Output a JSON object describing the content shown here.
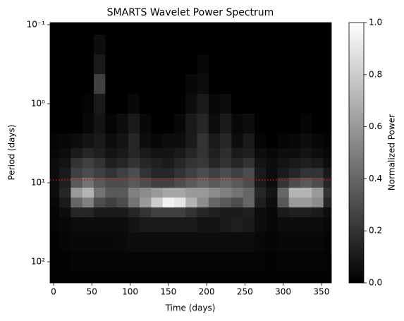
{
  "chart_data": {
    "type": "heatmap",
    "title": "SMARTS Wavelet Power Spectrum",
    "x_label": "Time (days)",
    "y_label": "Period (days)",
    "colorbar_label": "Normalized Power",
    "colormap": "gray",
    "y_scale": "log",
    "xlim": [
      -4.6,
      363
    ],
    "ylim": [
      185,
      0.094
    ],
    "xticks": [
      0,
      50,
      100,
      150,
      200,
      250,
      300,
      350
    ],
    "yticks": [
      {
        "value": 0.1,
        "label": "10⁻¹"
      },
      {
        "value": 1,
        "label": "10⁰"
      },
      {
        "value": 10,
        "label": "10¹"
      },
      {
        "value": 100,
        "label": "10²"
      }
    ],
    "clim": [
      0,
      1
    ],
    "cticks": [
      {
        "value": 0,
        "label": "0.0"
      },
      {
        "value": 0.2,
        "label": "0.2"
      },
      {
        "value": 0.4,
        "label": "0.4"
      },
      {
        "value": 0.6,
        "label": "0.6"
      },
      {
        "value": 0.8,
        "label": "0.8"
      },
      {
        "value": 1,
        "label": "1.0"
      }
    ],
    "hline": {
      "value": 9.2,
      "color": "#ff0000",
      "style": "dotted"
    },
    "x": [
      0,
      15,
      30,
      45,
      60,
      75,
      90,
      105,
      120,
      135,
      150,
      165,
      180,
      195,
      210,
      225,
      240,
      255,
      270,
      285,
      300,
      315,
      330,
      345,
      360
    ],
    "y": [
      0.1,
      0.178,
      0.316,
      0.562,
      1,
      1.78,
      3.16,
      4.22,
      5.62,
      7.5,
      10,
      13.3,
      17.8,
      23.7,
      31.6,
      56.2,
      100,
      178
    ],
    "values": [
      [
        0,
        0,
        0,
        0,
        0,
        0,
        0,
        0,
        0,
        0,
        0,
        0,
        0,
        0,
        0,
        0,
        0,
        0,
        0,
        0,
        0,
        0,
        0,
        0,
        0
      ],
      [
        0,
        0,
        0,
        0,
        0.05,
        0,
        0,
        0,
        0,
        0,
        0,
        0,
        0,
        0,
        0,
        0,
        0,
        0,
        0,
        0,
        0,
        0,
        0,
        0,
        0
      ],
      [
        0,
        0,
        0,
        0,
        0.1,
        0,
        0,
        0,
        0,
        0,
        0,
        0,
        0,
        0.03,
        0,
        0,
        0,
        0,
        0,
        0,
        0,
        0,
        0,
        0,
        0
      ],
      [
        0,
        0,
        0,
        0,
        0.25,
        0,
        0,
        0,
        0,
        0,
        0,
        0,
        0.03,
        0.05,
        0,
        0,
        0,
        0,
        0,
        0,
        0,
        0,
        0,
        0,
        0
      ],
      [
        0,
        0,
        0,
        0.02,
        0.1,
        0,
        0,
        0.03,
        0,
        0,
        0,
        0,
        0.05,
        0.1,
        0.03,
        0.05,
        0,
        0,
        0,
        0,
        0,
        0,
        0,
        0,
        0
      ],
      [
        0,
        0,
        0,
        0.03,
        0.08,
        0.02,
        0.05,
        0.1,
        0.03,
        0,
        0,
        0.03,
        0.1,
        0.15,
        0.05,
        0.1,
        0.03,
        0.05,
        0,
        0,
        0,
        0,
        0.02,
        0,
        0
      ],
      [
        0.02,
        0.03,
        0.05,
        0.08,
        0.1,
        0.05,
        0.08,
        0.15,
        0.05,
        0.03,
        0.05,
        0.05,
        0.1,
        0.2,
        0.1,
        0.15,
        0.05,
        0.1,
        0.02,
        0,
        0.02,
        0.03,
        0.05,
        0.03,
        0.02
      ],
      [
        0.03,
        0.05,
        0.1,
        0.15,
        0.12,
        0.08,
        0.1,
        0.15,
        0.1,
        0.08,
        0.08,
        0.1,
        0.15,
        0.2,
        0.12,
        0.18,
        0.1,
        0.12,
        0.05,
        0.03,
        0.05,
        0.05,
        0.08,
        0.05,
        0.03
      ],
      [
        0.05,
        0.08,
        0.2,
        0.25,
        0.2,
        0.12,
        0.15,
        0.2,
        0.15,
        0.12,
        0.1,
        0.15,
        0.2,
        0.22,
        0.15,
        0.2,
        0.15,
        0.2,
        0.08,
        0.05,
        0.08,
        0.1,
        0.12,
        0.1,
        0.05
      ],
      [
        0.05,
        0.1,
        0.25,
        0.3,
        0.25,
        0.2,
        0.25,
        0.3,
        0.2,
        0.15,
        0.15,
        0.2,
        0.25,
        0.3,
        0.25,
        0.3,
        0.25,
        0.3,
        0.1,
        0.05,
        0.1,
        0.15,
        0.2,
        0.2,
        0.1
      ],
      [
        0.05,
        0.12,
        0.35,
        0.45,
        0.35,
        0.3,
        0.3,
        0.35,
        0.3,
        0.25,
        0.25,
        0.3,
        0.35,
        0.4,
        0.35,
        0.4,
        0.35,
        0.3,
        0.1,
        0.05,
        0.2,
        0.3,
        0.35,
        0.3,
        0.15
      ],
      [
        0.05,
        0.15,
        0.6,
        0.7,
        0.45,
        0.35,
        0.35,
        0.5,
        0.55,
        0.6,
        0.65,
        0.65,
        0.6,
        0.6,
        0.55,
        0.5,
        0.45,
        0.4,
        0.15,
        0.08,
        0.4,
        0.7,
        0.7,
        0.6,
        0.2
      ],
      [
        0.03,
        0.1,
        0.4,
        0.5,
        0.3,
        0.25,
        0.3,
        0.45,
        0.6,
        0.8,
        0.95,
        0.9,
        0.7,
        0.55,
        0.4,
        0.35,
        0.3,
        0.4,
        0.12,
        0.05,
        0.35,
        0.6,
        0.6,
        0.55,
        0.15
      ],
      [
        0.02,
        0.05,
        0.15,
        0.15,
        0.1,
        0.1,
        0.1,
        0.15,
        0.2,
        0.25,
        0.25,
        0.25,
        0.2,
        0.15,
        0.12,
        0.1,
        0.1,
        0.12,
        0.05,
        0.03,
        0.1,
        0.12,
        0.12,
        0.1,
        0.05
      ],
      [
        0.02,
        0.03,
        0.05,
        0.05,
        0.05,
        0.05,
        0.05,
        0.08,
        0.1,
        0.1,
        0.1,
        0.1,
        0.1,
        0.08,
        0.08,
        0.1,
        0.12,
        0.1,
        0.05,
        0.03,
        0.05,
        0.05,
        0.05,
        0.05,
        0.03
      ],
      [
        0.01,
        0.02,
        0.03,
        0.03,
        0.03,
        0.03,
        0.04,
        0.05,
        0.05,
        0.05,
        0.05,
        0.05,
        0.05,
        0.05,
        0.05,
        0.05,
        0.05,
        0.05,
        0.03,
        0.02,
        0.03,
        0.03,
        0.03,
        0.03,
        0.02
      ],
      [
        0.01,
        0.01,
        0.02,
        0.02,
        0.02,
        0.02,
        0.02,
        0.02,
        0.02,
        0.02,
        0.02,
        0.02,
        0.02,
        0.02,
        0.02,
        0.02,
        0.02,
        0.02,
        0.02,
        0.01,
        0.02,
        0.02,
        0.02,
        0.02,
        0.01
      ],
      [
        0.01,
        0.01,
        0.01,
        0.01,
        0.01,
        0.01,
        0.01,
        0.01,
        0.01,
        0.01,
        0.01,
        0.01,
        0.01,
        0.01,
        0.01,
        0.01,
        0.01,
        0.01,
        0.01,
        0.01,
        0.01,
        0.01,
        0.01,
        0.01,
        0.01
      ]
    ]
  }
}
